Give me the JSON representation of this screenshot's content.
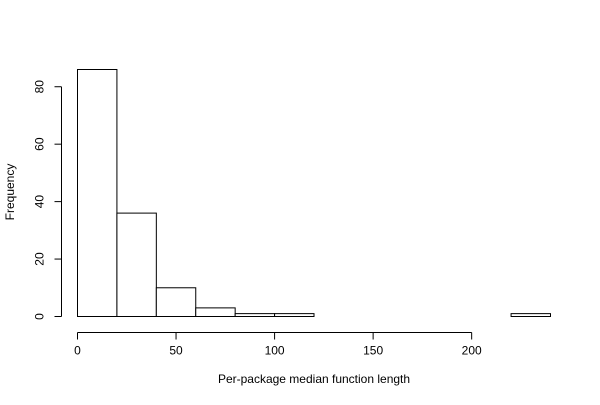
{
  "chart_data": {
    "type": "bar",
    "title": "",
    "xlabel": "Per-package median function length",
    "ylabel": "Frequency",
    "bin_edges": [
      0,
      20,
      40,
      60,
      80,
      100,
      120,
      140,
      160,
      180,
      200,
      220,
      240
    ],
    "values": [
      86,
      36,
      10,
      3,
      1,
      1,
      0,
      0,
      0,
      0,
      0,
      1
    ],
    "xlim": [
      0,
      240
    ],
    "ylim": [
      0,
      86
    ],
    "x_ticks": [
      0,
      50,
      100,
      150,
      200
    ],
    "x_tick_labels": [
      "0",
      "50",
      "100",
      "150",
      "200"
    ],
    "y_ticks": [
      0,
      20,
      40,
      60,
      80
    ],
    "y_tick_labels": [
      "0",
      "20",
      "40",
      "60",
      "80"
    ],
    "grid": false,
    "legend": "none",
    "bar_fill": "#ffffff",
    "bar_stroke": "#000000"
  }
}
